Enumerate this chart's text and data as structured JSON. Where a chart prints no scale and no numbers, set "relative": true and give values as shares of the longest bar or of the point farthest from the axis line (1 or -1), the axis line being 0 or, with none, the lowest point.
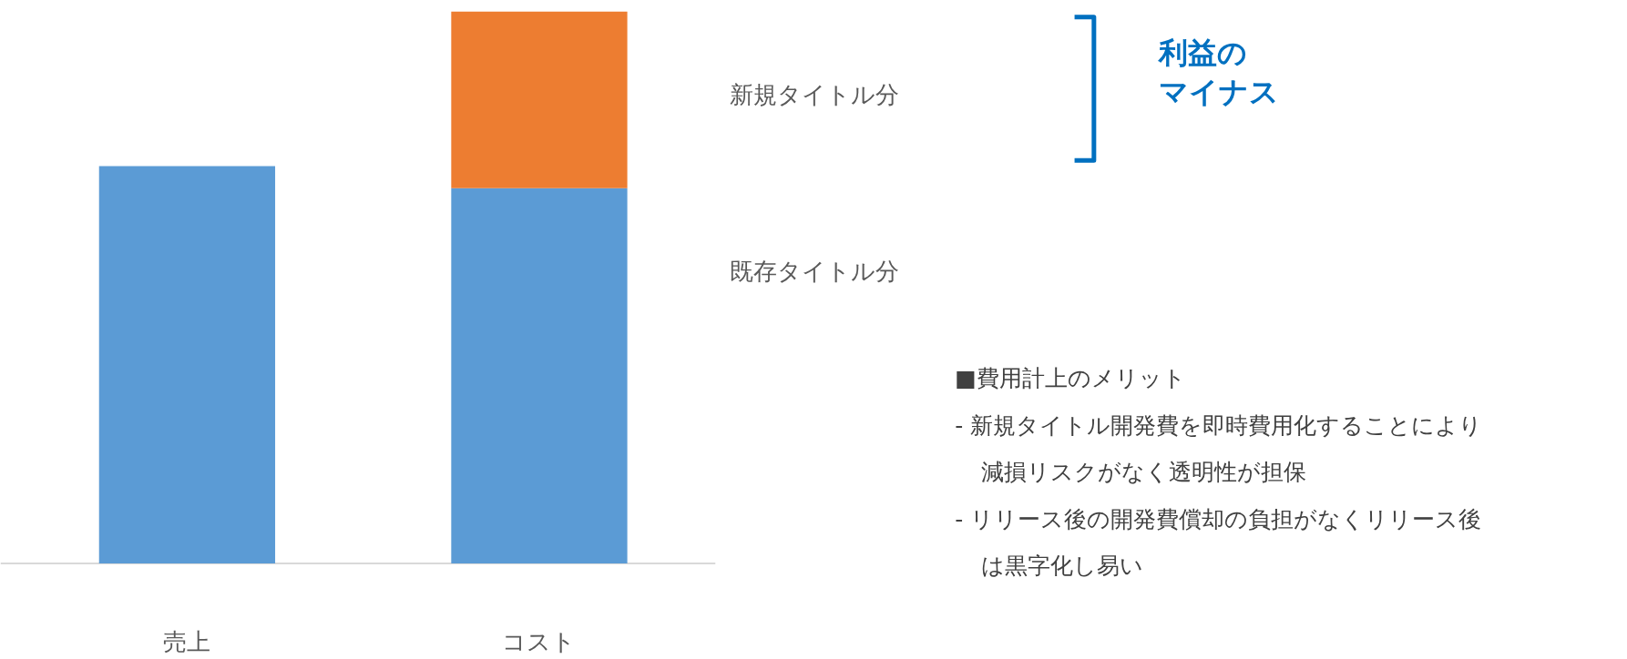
{
  "chart_data": {
    "type": "bar",
    "stacked": true,
    "relative": true,
    "categories": [
      "売上",
      "コスト"
    ],
    "series": [
      {
        "name": "既存タイトル分",
        "color": "#5b9bd5",
        "values": [
          0.72,
          0.68
        ]
      },
      {
        "name": "新規タイトル分",
        "color": "#ed7d31",
        "values": [
          null,
          0.32
        ]
      }
    ],
    "annotations": [
      "利益の",
      "マイナス",
      "■費用計上のメリット",
      "- 新規タイトル開発費を即時費用化することにより減損リスクがなく透明性が担保",
      "- リリース後の開発費償却の負担がなくリリース後は黒字化し易い"
    ],
    "grid": false
  }
}
